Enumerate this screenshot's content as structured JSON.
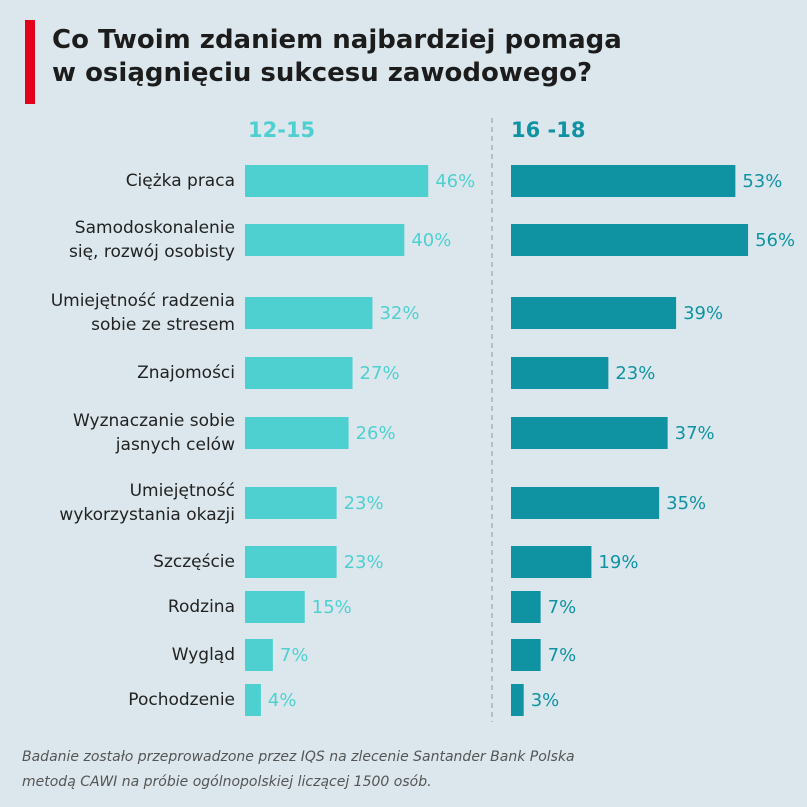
{
  "title": "Co Twoim zdaniem najbardziej pomaga\nw osiągnięciu sukcesu zawodowego?",
  "note": "Badanie zostało przeprowadzone przez IQS na zlecenie Santander Bank Polska\nmetodą CAWI na próbie ogólnopolskiej liczącej 1500 osób.",
  "chart_data": {
    "type": "bar",
    "orientation": "horizontal",
    "categories": [
      "Ciężka praca",
      "Samodoskonalenie\nsię, rozwój osobisty",
      "Umiejętność radzenia\nsobie ze stresem",
      "Znajomości",
      "Wyznaczanie sobie\njasnych celów",
      "Umiejętność\nwykorzystania okazji",
      "Szczęście",
      "Rodzina",
      "Wygląd",
      "Pochodzenie"
    ],
    "xlim": [
      0,
      60
    ],
    "series": [
      {
        "name": "12-15",
        "color": "#4fd0d0",
        "values": [
          46,
          40,
          32,
          27,
          26,
          23,
          23,
          15,
          7,
          4
        ],
        "value_labels": [
          "46%",
          "40%",
          "32%",
          "27%",
          "26%",
          "23%",
          "23%",
          "15%",
          "7%",
          "4%"
        ]
      },
      {
        "name": "16 -18",
        "color": "#0f93a3",
        "values": [
          53,
          56,
          39,
          23,
          37,
          35,
          19,
          7,
          7,
          3
        ],
        "value_labels": [
          "53%",
          "56%",
          "39%",
          "23%",
          "37%",
          "35%",
          "19%",
          "7%",
          "7%",
          "3%"
        ]
      }
    ]
  }
}
